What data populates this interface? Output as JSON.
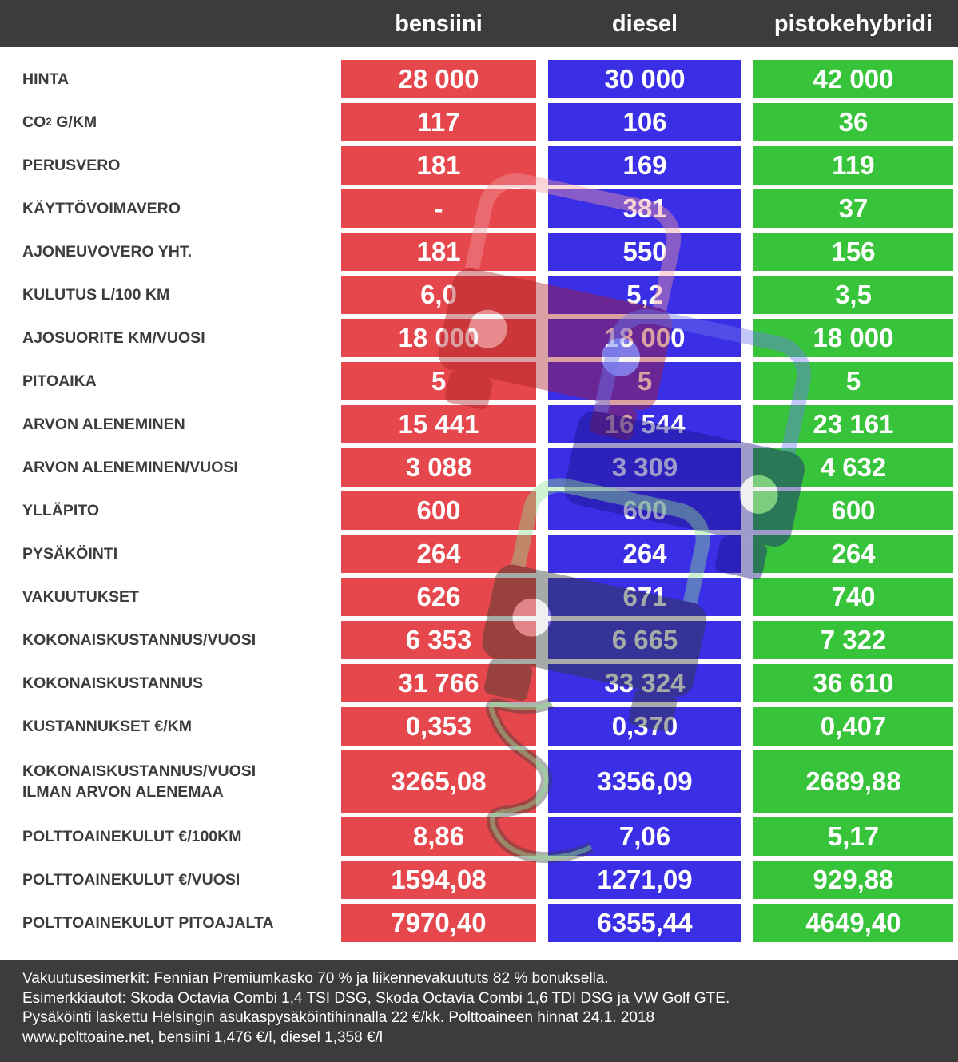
{
  "columns": [
    "bensiini",
    "diesel",
    "pistokehybridi"
  ],
  "colors": {
    "bensiini": "#e5474c",
    "diesel": "#3a2ee6",
    "pistokehybridi": "#37c43b",
    "header_bg": "#3d3c3c",
    "label_text": "#3d3c3c"
  },
  "watermark_icon": "car-with-charging-cable-icon",
  "rows": [
    {
      "label": "HINTA",
      "values": [
        "28 000",
        "30 000",
        "42 000"
      ]
    },
    {
      "label_pre": "CO",
      "label_sup": "2",
      "label_post": " G/KM",
      "values": [
        "117",
        "106",
        "36"
      ]
    },
    {
      "label": "PERUSVERO",
      "values": [
        "181",
        "169",
        "119"
      ]
    },
    {
      "label": "KÄYTTÖVOIMAVERO",
      "values": [
        "-",
        "381",
        "37"
      ]
    },
    {
      "label": "AJONEUVOVERO YHT.",
      "values": [
        "181",
        "550",
        "156"
      ]
    },
    {
      "label": "KULUTUS L/100 KM",
      "values": [
        "6,0",
        "5,2",
        "3,5"
      ]
    },
    {
      "label": "AJOSUORITE KM/VUOSI",
      "values": [
        "18 000",
        "18 000",
        "18 000"
      ]
    },
    {
      "label": "PITOAIKA",
      "values": [
        "5",
        "5",
        "5"
      ]
    },
    {
      "label": "ARVON ALENEMINEN",
      "values": [
        "15 441",
        "16 544",
        "23 161"
      ]
    },
    {
      "label": "ARVON ALENEMINEN/VUOSI",
      "values": [
        "3 088",
        "3 309",
        "4 632"
      ]
    },
    {
      "label": "YLLÄPITO",
      "values": [
        "600",
        "600",
        "600"
      ]
    },
    {
      "label": "PYSÄKÖINTI",
      "values": [
        "264",
        "264",
        "264"
      ]
    },
    {
      "label": "VAKUUTUKSET",
      "values": [
        "626",
        "671",
        "740"
      ]
    },
    {
      "label": "KOKONAISKUSTANNUS/VUOSI",
      "values": [
        "6 353",
        "6 665",
        "7 322"
      ]
    },
    {
      "label": "KOKONAISKUSTANNUS",
      "values": [
        "31 766",
        "33 324",
        "36 610"
      ]
    },
    {
      "label": "KUSTANNUKSET €/KM",
      "values": [
        "0,353",
        "0,370",
        "0,407"
      ]
    },
    {
      "label": "KOKONAISKUSTANNUS/VUOSI\nILMAN ARVON ALENEMAA",
      "values": [
        "3265,08",
        "3356,09",
        "2689,88"
      ]
    },
    {
      "label": "POLTTOAINEKULUT €/100KM",
      "values": [
        "8,86",
        "7,06",
        "5,17"
      ]
    },
    {
      "label": "POLTTOAINEKULUT €/VUOSI",
      "values": [
        "1594,08",
        "1271,09",
        "929,88"
      ]
    },
    {
      "label": "POLTTOAINEKULUT PITOAJALTA",
      "values": [
        "7970,40",
        "6355,44",
        "4649,40"
      ]
    }
  ],
  "footer": [
    "Vakuutusesimerkit: Fennian Premiumkasko 70 % ja liikennevakuututs 82 % bonuksella.",
    "Esimerkkiautot: Skoda Octavia Combi 1,4 TSI DSG, Skoda Octavia Combi 1,6 TDI DSG ja VW Golf GTE.",
    "Pysäköinti laskettu Helsingin asukaspysäköintihinnalla 22 €/kk. Polttoaineen hinnat 24.1. 2018",
    "www.polttoaine.net, bensiini 1,476 €/l, diesel 1,358 €/l"
  ],
  "chart_data": {
    "type": "table",
    "columns": [
      "bensiini",
      "diesel",
      "pistokehybridi"
    ],
    "rows": [
      [
        "HINTA",
        "28 000",
        "30 000",
        "42 000"
      ],
      [
        "CO2 G/KM",
        "117",
        "106",
        "36"
      ],
      [
        "PERUSVERO",
        "181",
        "169",
        "119"
      ],
      [
        "KÄYTTÖVOIMAVERO",
        "-",
        "381",
        "37"
      ],
      [
        "AJONEUVOVERO YHT.",
        "181",
        "550",
        "156"
      ],
      [
        "KULUTUS L/100 KM",
        "6,0",
        "5,2",
        "3,5"
      ],
      [
        "AJOSUORITE KM/VUOSI",
        "18 000",
        "18 000",
        "18 000"
      ],
      [
        "PITOAIKA",
        "5",
        "5",
        "5"
      ],
      [
        "ARVON ALENEMINEN",
        "15 441",
        "16 544",
        "23 161"
      ],
      [
        "ARVON ALENEMINEN/VUOSI",
        "3 088",
        "3 309",
        "4 632"
      ],
      [
        "YLLÄPITO",
        "600",
        "600",
        "600"
      ],
      [
        "PYSÄKÖINTI",
        "264",
        "264",
        "264"
      ],
      [
        "VAKUUTUKSET",
        "626",
        "671",
        "740"
      ],
      [
        "KOKONAISKUSTANNUS/VUOSI",
        "6 353",
        "6 665",
        "7 322"
      ],
      [
        "KOKONAISKUSTANNUS",
        "31 766",
        "33 324",
        "36 610"
      ],
      [
        "KUSTANNUKSET €/KM",
        "0,353",
        "0,370",
        "0,407"
      ],
      [
        "KOKONAISKUSTANNUS/VUOSI ILMAN ARVON ALENEMAA",
        "3265,08",
        "3356,09",
        "2689,88"
      ],
      [
        "POLTTOAINEKULUT €/100KM",
        "8,86",
        "7,06",
        "5,17"
      ],
      [
        "POLTTOAINEKULUT €/VUOSI",
        "1594,08",
        "1271,09",
        "929,88"
      ],
      [
        "POLTTOAINEKULUT PITOAJALTA",
        "7970,40",
        "6355,44",
        "4649,40"
      ]
    ]
  }
}
